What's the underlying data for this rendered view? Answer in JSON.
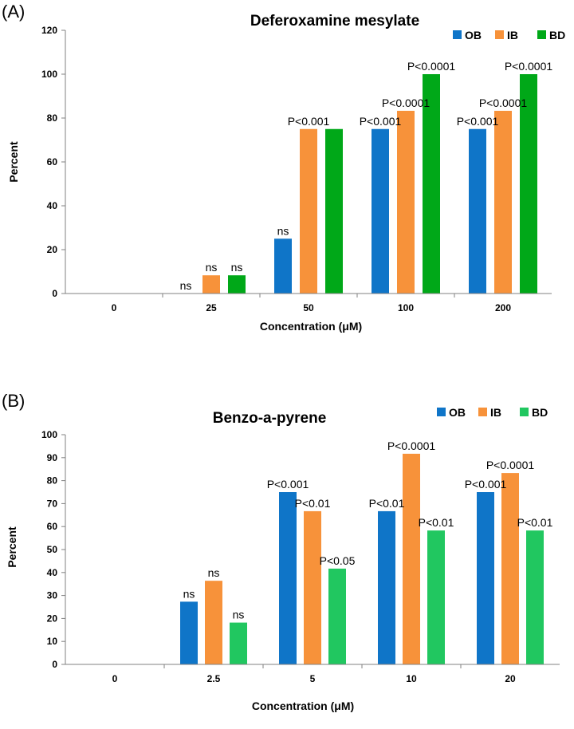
{
  "chart_data": [
    {
      "type": "bar",
      "panel_label": "(A)",
      "title": "Deferoxamine mesylate",
      "xlabel": "Concentration (μM)",
      "ylabel": "Percent",
      "ylim": [
        0,
        120
      ],
      "yticks": [
        0,
        20,
        40,
        60,
        80,
        100,
        120
      ],
      "categories": [
        "0",
        "25",
        "50",
        "100",
        "200"
      ],
      "legend_position": "top-right",
      "series": [
        {
          "name": "OB",
          "color": "#0f75c8",
          "values": [
            0,
            0,
            25,
            75,
            75
          ],
          "labels": [
            "",
            "ns",
            "ns",
            "P<0.001",
            "P<0.001"
          ]
        },
        {
          "name": "IB",
          "color": "#f7923a",
          "values": [
            0,
            8.3,
            75,
            83.3,
            83.3
          ],
          "labels": [
            "",
            "ns",
            "P<0.001",
            "P<0.0001",
            "P<0.0001"
          ]
        },
        {
          "name": "BD",
          "color": "#00a818",
          "values": [
            0,
            8.3,
            75,
            100,
            100
          ],
          "labels": [
            "",
            "ns",
            "",
            "P<0.0001",
            "P<0.0001"
          ]
        }
      ]
    },
    {
      "type": "bar",
      "panel_label": "(B)",
      "title": "Benzo-a-pyrene",
      "xlabel": "Concentration (μM)",
      "ylabel": "Percent",
      "ylim": [
        0,
        100
      ],
      "yticks": [
        0,
        10,
        20,
        30,
        40,
        50,
        60,
        70,
        80,
        90,
        100
      ],
      "categories": [
        "0",
        "2.5",
        "5",
        "10",
        "20"
      ],
      "legend_position": "top-right",
      "series": [
        {
          "name": "OB",
          "color": "#0f75c8",
          "values": [
            0,
            27.3,
            75,
            66.7,
            75
          ],
          "labels": [
            "",
            "ns",
            "P<0.001",
            "P<0.01",
            "P<0.001"
          ]
        },
        {
          "name": "IB",
          "color": "#f7923a",
          "values": [
            0,
            36.4,
            66.7,
            91.7,
            83.3
          ],
          "labels": [
            "",
            "ns",
            "P<0.01",
            "P<0.0001",
            "P<0.0001"
          ]
        },
        {
          "name": "BD",
          "color": "#21c760",
          "values": [
            0,
            18.2,
            41.7,
            58.3,
            58.3
          ],
          "labels": [
            "",
            "ns",
            "P<0.05",
            "P<0.01",
            "P<0.01"
          ]
        }
      ]
    }
  ]
}
